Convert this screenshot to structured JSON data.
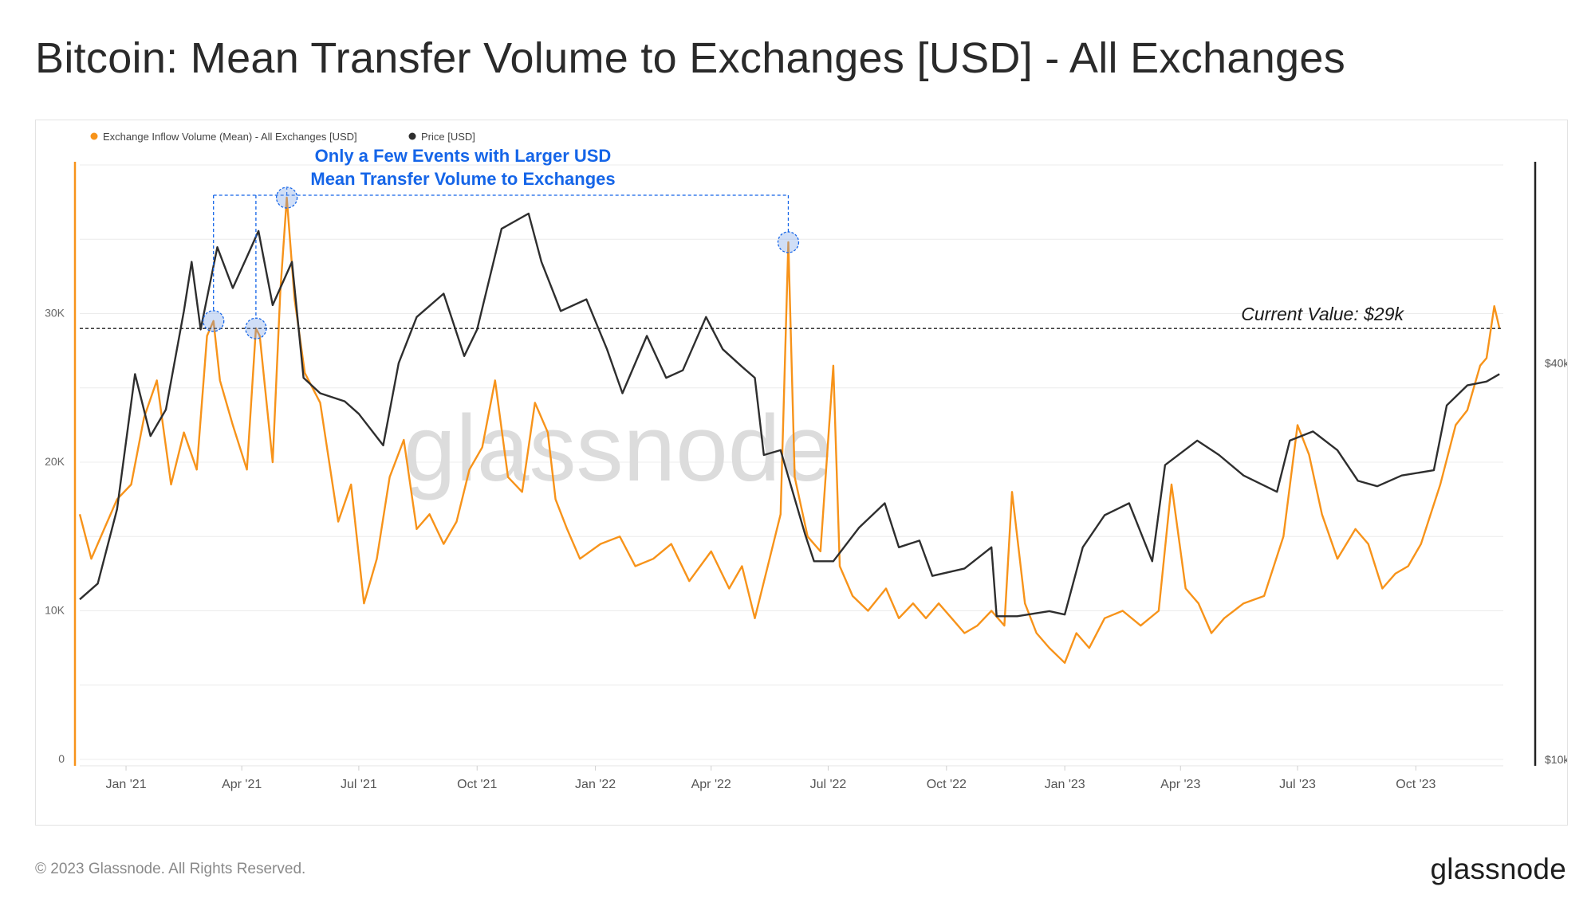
{
  "title": "Bitcoin: Mean Transfer Volume to Exchanges [USD] - All Exchanges",
  "footer": {
    "copyright": "© 2023 Glassnode. All Rights Reserved.",
    "logo": "glassnode"
  },
  "watermark": "glassnode",
  "colors": {
    "inflow": "#f7931a",
    "price": "#2e2e2e",
    "annotation": "#1565e8",
    "grid": "#ececec"
  },
  "chart_data": {
    "type": "line",
    "legend_position": "top-left",
    "x_start": "2020-11-26",
    "x_end": "2023-12-08",
    "x_ticks": [
      {
        "date": "2021-01-01",
        "label": "Jan '21"
      },
      {
        "date": "2021-04-01",
        "label": "Apr '21"
      },
      {
        "date": "2021-07-01",
        "label": "Jul '21"
      },
      {
        "date": "2021-10-01",
        "label": "Oct '21"
      },
      {
        "date": "2022-01-01",
        "label": "Jan '22"
      },
      {
        "date": "2022-04-01",
        "label": "Apr '22"
      },
      {
        "date": "2022-07-01",
        "label": "Jul '22"
      },
      {
        "date": "2022-10-01",
        "label": "Oct '22"
      },
      {
        "date": "2023-01-01",
        "label": "Jan '23"
      },
      {
        "date": "2023-04-01",
        "label": "Apr '23"
      },
      {
        "date": "2023-07-01",
        "label": "Jul '23"
      },
      {
        "date": "2023-10-01",
        "label": "Oct '23"
      }
    ],
    "y_left": {
      "scale": "linear",
      "range": [
        0,
        40000
      ],
      "ticks": [
        {
          "value": 0,
          "label": "0"
        },
        {
          "value": 10000,
          "label": "10K"
        },
        {
          "value": 20000,
          "label": "20K"
        },
        {
          "value": 30000,
          "label": "30K"
        }
      ]
    },
    "y_right": {
      "scale": "log",
      "range": [
        10000,
        80000
      ],
      "ticks": [
        {
          "value": 10000,
          "label": "$10k"
        },
        {
          "value": 40000,
          "label": "$40k"
        }
      ]
    },
    "grid": true,
    "series": [
      {
        "name": "Exchange Inflow Volume (Mean) - All Exchanges [USD]",
        "axis": "left",
        "color": "#f7931a",
        "points": [
          [
            "2020-11-26",
            16500
          ],
          [
            "2020-12-05",
            13500
          ],
          [
            "2020-12-15",
            15500
          ],
          [
            "2020-12-25",
            17500
          ],
          [
            "2021-01-05",
            18500
          ],
          [
            "2021-01-15",
            23000
          ],
          [
            "2021-01-25",
            25500
          ],
          [
            "2021-02-05",
            18500
          ],
          [
            "2021-02-15",
            22000
          ],
          [
            "2021-02-25",
            19500
          ],
          [
            "2021-03-05",
            28500
          ],
          [
            "2021-03-10",
            29500
          ],
          [
            "2021-03-15",
            25500
          ],
          [
            "2021-03-25",
            22500
          ],
          [
            "2021-04-05",
            19500
          ],
          [
            "2021-04-12",
            29000
          ],
          [
            "2021-04-15",
            28500
          ],
          [
            "2021-04-25",
            20000
          ],
          [
            "2021-05-01",
            31500
          ],
          [
            "2021-05-06",
            37800
          ],
          [
            "2021-05-12",
            31000
          ],
          [
            "2021-05-20",
            26000
          ],
          [
            "2021-06-01",
            24000
          ],
          [
            "2021-06-15",
            16000
          ],
          [
            "2021-06-25",
            18500
          ],
          [
            "2021-07-05",
            10500
          ],
          [
            "2021-07-15",
            13500
          ],
          [
            "2021-07-25",
            19000
          ],
          [
            "2021-08-05",
            21500
          ],
          [
            "2021-08-15",
            15500
          ],
          [
            "2021-08-25",
            16500
          ],
          [
            "2021-09-05",
            14500
          ],
          [
            "2021-09-15",
            16000
          ],
          [
            "2021-09-25",
            19500
          ],
          [
            "2021-10-05",
            21000
          ],
          [
            "2021-10-15",
            25500
          ],
          [
            "2021-10-25",
            19000
          ],
          [
            "2021-11-05",
            18000
          ],
          [
            "2021-11-15",
            24000
          ],
          [
            "2021-11-25",
            22000
          ],
          [
            "2021-12-01",
            17500
          ],
          [
            "2021-12-10",
            15500
          ],
          [
            "2021-12-20",
            13500
          ],
          [
            "2022-01-05",
            14500
          ],
          [
            "2022-01-20",
            15000
          ],
          [
            "2022-02-01",
            13000
          ],
          [
            "2022-02-15",
            13500
          ],
          [
            "2022-03-01",
            14500
          ],
          [
            "2022-03-15",
            12000
          ],
          [
            "2022-04-01",
            14000
          ],
          [
            "2022-04-15",
            11500
          ],
          [
            "2022-04-25",
            13000
          ],
          [
            "2022-05-05",
            9500
          ],
          [
            "2022-05-15",
            13000
          ],
          [
            "2022-05-25",
            16500
          ],
          [
            "2022-05-31",
            34800
          ],
          [
            "2022-06-05",
            19000
          ],
          [
            "2022-06-15",
            15000
          ],
          [
            "2022-06-25",
            14000
          ],
          [
            "2022-07-05",
            26500
          ],
          [
            "2022-07-10",
            13000
          ],
          [
            "2022-07-20",
            11000
          ],
          [
            "2022-08-01",
            10000
          ],
          [
            "2022-08-15",
            11500
          ],
          [
            "2022-08-25",
            9500
          ],
          [
            "2022-09-05",
            10500
          ],
          [
            "2022-09-15",
            9500
          ],
          [
            "2022-09-25",
            10500
          ],
          [
            "2022-10-05",
            9500
          ],
          [
            "2022-10-15",
            8500
          ],
          [
            "2022-10-25",
            9000
          ],
          [
            "2022-11-05",
            10000
          ],
          [
            "2022-11-15",
            9000
          ],
          [
            "2022-11-21",
            18000
          ],
          [
            "2022-12-01",
            10500
          ],
          [
            "2022-12-10",
            8500
          ],
          [
            "2022-12-20",
            7500
          ],
          [
            "2023-01-01",
            6500
          ],
          [
            "2023-01-10",
            8500
          ],
          [
            "2023-01-20",
            7500
          ],
          [
            "2023-02-01",
            9500
          ],
          [
            "2023-02-15",
            10000
          ],
          [
            "2023-03-01",
            9000
          ],
          [
            "2023-03-15",
            10000
          ],
          [
            "2023-03-25",
            18500
          ],
          [
            "2023-04-05",
            11500
          ],
          [
            "2023-04-15",
            10500
          ],
          [
            "2023-04-25",
            8500
          ],
          [
            "2023-05-05",
            9500
          ],
          [
            "2023-05-20",
            10500
          ],
          [
            "2023-06-05",
            11000
          ],
          [
            "2023-06-20",
            15000
          ],
          [
            "2023-07-01",
            22500
          ],
          [
            "2023-07-10",
            20500
          ],
          [
            "2023-07-20",
            16500
          ],
          [
            "2023-08-01",
            13500
          ],
          [
            "2023-08-15",
            15500
          ],
          [
            "2023-08-25",
            14500
          ],
          [
            "2023-09-05",
            11500
          ],
          [
            "2023-09-15",
            12500
          ],
          [
            "2023-09-25",
            13000
          ],
          [
            "2023-10-05",
            14500
          ],
          [
            "2023-10-20",
            18500
          ],
          [
            "2023-11-01",
            22500
          ],
          [
            "2023-11-10",
            23500
          ],
          [
            "2023-11-20",
            26500
          ],
          [
            "2023-11-25",
            27000
          ],
          [
            "2023-12-01",
            30500
          ],
          [
            "2023-12-05",
            29000
          ]
        ]
      },
      {
        "name": "Price [USD]",
        "axis": "right",
        "color": "#2e2e2e",
        "points": [
          [
            "2020-11-26",
            17500
          ],
          [
            "2020-12-10",
            18500
          ],
          [
            "2020-12-25",
            24000
          ],
          [
            "2021-01-08",
            38500
          ],
          [
            "2021-01-20",
            31000
          ],
          [
            "2021-02-01",
            34000
          ],
          [
            "2021-02-15",
            48000
          ],
          [
            "2021-02-21",
            57000
          ],
          [
            "2021-02-28",
            45000
          ],
          [
            "2021-03-13",
            60000
          ],
          [
            "2021-03-25",
            52000
          ],
          [
            "2021-04-05",
            58000
          ],
          [
            "2021-04-14",
            63500
          ],
          [
            "2021-04-25",
            49000
          ],
          [
            "2021-05-10",
            57000
          ],
          [
            "2021-05-19",
            38000
          ],
          [
            "2021-06-01",
            36000
          ],
          [
            "2021-06-20",
            35000
          ],
          [
            "2021-07-01",
            33500
          ],
          [
            "2021-07-20",
            30000
          ],
          [
            "2021-08-01",
            40000
          ],
          [
            "2021-08-15",
            47000
          ],
          [
            "2021-09-05",
            51000
          ],
          [
            "2021-09-21",
            41000
          ],
          [
            "2021-10-01",
            45000
          ],
          [
            "2021-10-20",
            64000
          ],
          [
            "2021-11-10",
            67500
          ],
          [
            "2021-11-20",
            57000
          ],
          [
            "2021-12-05",
            48000
          ],
          [
            "2021-12-25",
            50000
          ],
          [
            "2022-01-10",
            42000
          ],
          [
            "2022-01-22",
            36000
          ],
          [
            "2022-02-10",
            44000
          ],
          [
            "2022-02-25",
            38000
          ],
          [
            "2022-03-10",
            39000
          ],
          [
            "2022-03-28",
            47000
          ],
          [
            "2022-04-10",
            42000
          ],
          [
            "2022-04-25",
            39500
          ],
          [
            "2022-05-05",
            38000
          ],
          [
            "2022-05-12",
            29000
          ],
          [
            "2022-05-25",
            29500
          ],
          [
            "2022-06-13",
            22000
          ],
          [
            "2022-06-20",
            20000
          ],
          [
            "2022-07-05",
            20000
          ],
          [
            "2022-07-25",
            22500
          ],
          [
            "2022-08-14",
            24500
          ],
          [
            "2022-08-25",
            21000
          ],
          [
            "2022-09-10",
            21500
          ],
          [
            "2022-09-20",
            19000
          ],
          [
            "2022-10-15",
            19500
          ],
          [
            "2022-11-05",
            21000
          ],
          [
            "2022-11-09",
            16500
          ],
          [
            "2022-11-25",
            16500
          ],
          [
            "2022-12-20",
            16800
          ],
          [
            "2023-01-01",
            16600
          ],
          [
            "2023-01-15",
            21000
          ],
          [
            "2023-02-01",
            23500
          ],
          [
            "2023-02-20",
            24500
          ],
          [
            "2023-03-10",
            20000
          ],
          [
            "2023-03-20",
            28000
          ],
          [
            "2023-04-14",
            30500
          ],
          [
            "2023-05-01",
            29000
          ],
          [
            "2023-05-20",
            27000
          ],
          [
            "2023-06-15",
            25500
          ],
          [
            "2023-06-25",
            30500
          ],
          [
            "2023-07-13",
            31500
          ],
          [
            "2023-08-01",
            29500
          ],
          [
            "2023-08-17",
            26500
          ],
          [
            "2023-09-01",
            26000
          ],
          [
            "2023-09-20",
            27000
          ],
          [
            "2023-10-15",
            27500
          ],
          [
            "2023-10-25",
            34500
          ],
          [
            "2023-11-10",
            37000
          ],
          [
            "2023-11-25",
            37500
          ],
          [
            "2023-12-05",
            38500
          ]
        ]
      }
    ],
    "reference_line": {
      "axis": "left",
      "value": 29000,
      "label": "Current Value: $29k"
    },
    "annotation": {
      "text_line1": "Only a Few Events with Larger USD",
      "text_line2": "Mean Transfer Volume to Exchanges",
      "highlighted_events": [
        {
          "date": "2021-03-10",
          "value": 29500
        },
        {
          "date": "2021-04-12",
          "value": 29000
        },
        {
          "date": "2021-05-06",
          "value": 37800
        },
        {
          "date": "2022-05-31",
          "value": 34800
        }
      ],
      "bracket_level": 37800
    }
  }
}
